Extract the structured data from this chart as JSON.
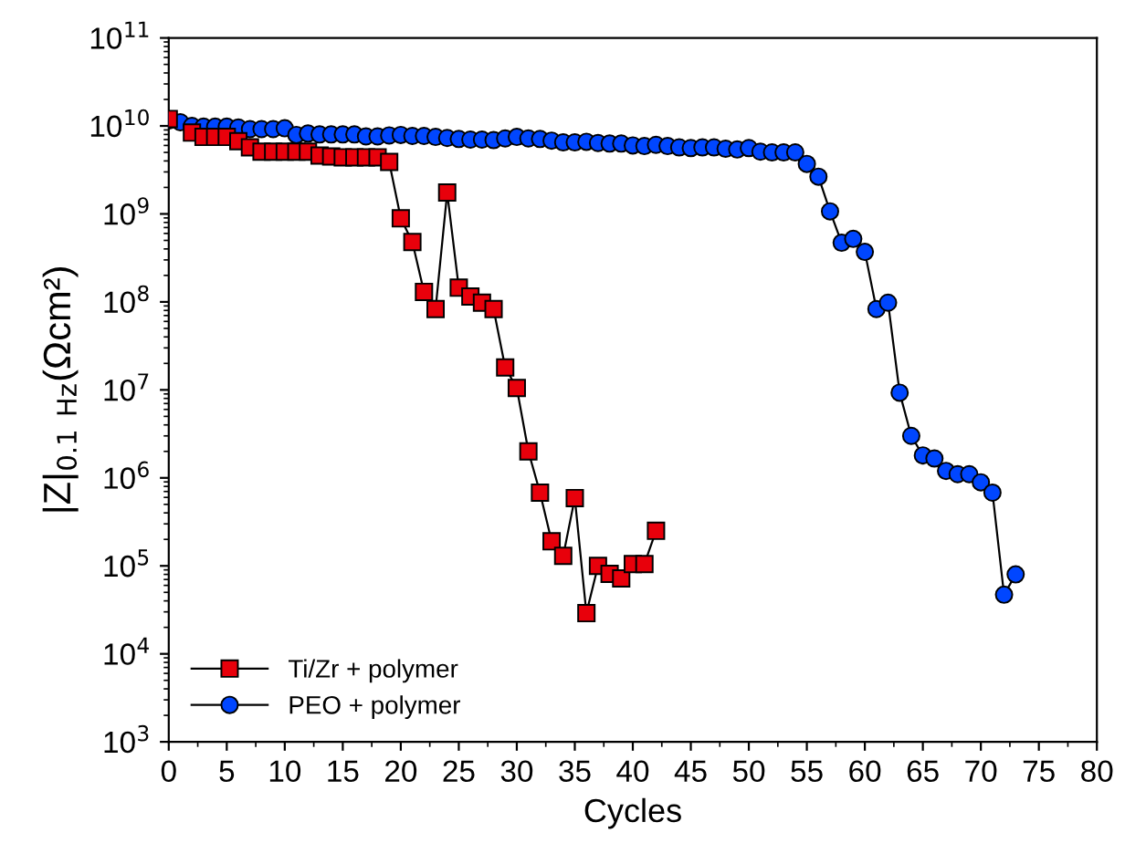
{
  "chart_data": {
    "type": "line",
    "xlabel": "Cycles",
    "ylabel": "|Z|$_{0.1 Hz}$(Ωcm²)",
    "log": "y",
    "grid": false,
    "legend": "bottom left",
    "line_style": "solid",
    "xlim": [
      0,
      80
    ],
    "xticks": [
      0,
      5,
      10,
      15,
      20,
      25,
      30,
      35,
      40,
      45,
      50,
      55,
      60,
      65,
      70,
      75,
      80
    ],
    "ylim": [
      1000,
      100000000000
    ],
    "yticks": [
      {
        "value": 1000,
        "label": "10$^{3}$"
      },
      {
        "value": 10000,
        "label": "10$^{4}$"
      },
      {
        "value": 100000,
        "label": "10$^{5}$"
      },
      {
        "value": 1000000,
        "label": "10$^{6}$"
      },
      {
        "value": 10000000,
        "label": "10$^{7}$"
      },
      {
        "value": 100000000,
        "label": "10$^{8}$"
      },
      {
        "value": 1000000000,
        "label": "10$^{9}$"
      },
      {
        "value": 10000000000,
        "label": "10$^{10}$"
      },
      {
        "value": 100000000000,
        "label": "10$^{11}$"
      }
    ],
    "series": [
      {
        "name": "Ti/Zr + polymer",
        "color": "#e8000b",
        "marker": "square",
        "x": [
          0,
          1,
          2,
          3,
          4,
          5,
          6,
          7,
          8,
          9,
          10,
          11,
          12,
          13,
          14,
          15,
          16,
          17,
          18,
          19,
          20,
          21,
          22,
          23,
          24,
          25,
          26,
          27,
          28,
          29,
          30,
          31,
          32,
          33,
          34,
          35,
          36,
          37,
          38,
          39,
          40,
          41,
          42
        ],
        "values": [
          12000000000.0,
          null,
          8400000000.0,
          7500000000.0,
          7500000000.0,
          7500000000.0,
          6700000000.0,
          5700000000.0,
          5100000000.0,
          5100000000.0,
          5100000000.0,
          5100000000.0,
          5100000000.0,
          4600000000.0,
          4500000000.0,
          4400000000.0,
          4400000000.0,
          4400000000.0,
          4400000000.0,
          3900000000.0,
          890000000.0,
          480000000.0,
          130000000.0,
          83000000.0,
          1750000000.0,
          145000000.0,
          115000000.0,
          98000000.0,
          83000000.0,
          18000000.0,
          10500000.0,
          2000000.0,
          680000.0,
          190000.0,
          130000.0,
          590000.0,
          29000.0,
          100000.0,
          81000.0,
          72000.0,
          105000.0,
          105000.0,
          250000.0
        ]
      },
      {
        "name": "PEO + polymer",
        "color": "#0046ff",
        "marker": "circle",
        "x": [
          0,
          1,
          2,
          3,
          4,
          5,
          6,
          7,
          8,
          9,
          10,
          11,
          12,
          13,
          14,
          15,
          16,
          17,
          18,
          19,
          20,
          21,
          22,
          23,
          24,
          25,
          26,
          27,
          28,
          29,
          30,
          31,
          32,
          33,
          34,
          35,
          36,
          37,
          38,
          39,
          40,
          41,
          42,
          43,
          44,
          45,
          46,
          47,
          48,
          49,
          50,
          51,
          52,
          53,
          54,
          55,
          56,
          57,
          58,
          59,
          60,
          61,
          62,
          63,
          64,
          65,
          66,
          67,
          68,
          69,
          70,
          71,
          72,
          73
        ],
        "values": [
          11500000000.0,
          11000000000.0,
          10000000000.0,
          9800000000.0,
          9800000000.0,
          9800000000.0,
          9600000000.0,
          9200000000.0,
          9200000000.0,
          9200000000.0,
          9400000000.0,
          7900000000.0,
          8200000000.0,
          8000000000.0,
          8000000000.0,
          8000000000.0,
          8000000000.0,
          7600000000.0,
          7600000000.0,
          7800000000.0,
          7900000000.0,
          7700000000.0,
          7700000000.0,
          7500000000.0,
          7300000000.0,
          7100000000.0,
          7000000000.0,
          7000000000.0,
          6900000000.0,
          7200000000.0,
          7500000000.0,
          7200000000.0,
          7100000000.0,
          6800000000.0,
          6500000000.0,
          6500000000.0,
          6600000000.0,
          6400000000.0,
          6300000000.0,
          6300000000.0,
          6000000000.0,
          5900000000.0,
          6100000000.0,
          5900000000.0,
          5700000000.0,
          5600000000.0,
          5700000000.0,
          5700000000.0,
          5500000000.0,
          5400000000.0,
          5600000000.0,
          5100000000.0,
          5000000000.0,
          5000000000.0,
          5000000000.0,
          3700000000.0,
          2650000000.0,
          1070000000.0,
          470000000.0,
          520000000.0,
          370000000.0,
          83000000.0,
          98000000.0,
          9300000.0,
          3000000.0,
          1800000.0,
          1660000.0,
          1200000.0,
          1100000.0,
          1100000.0,
          890000.0,
          680000.0,
          47000.0,
          80000.0
        ]
      }
    ]
  }
}
